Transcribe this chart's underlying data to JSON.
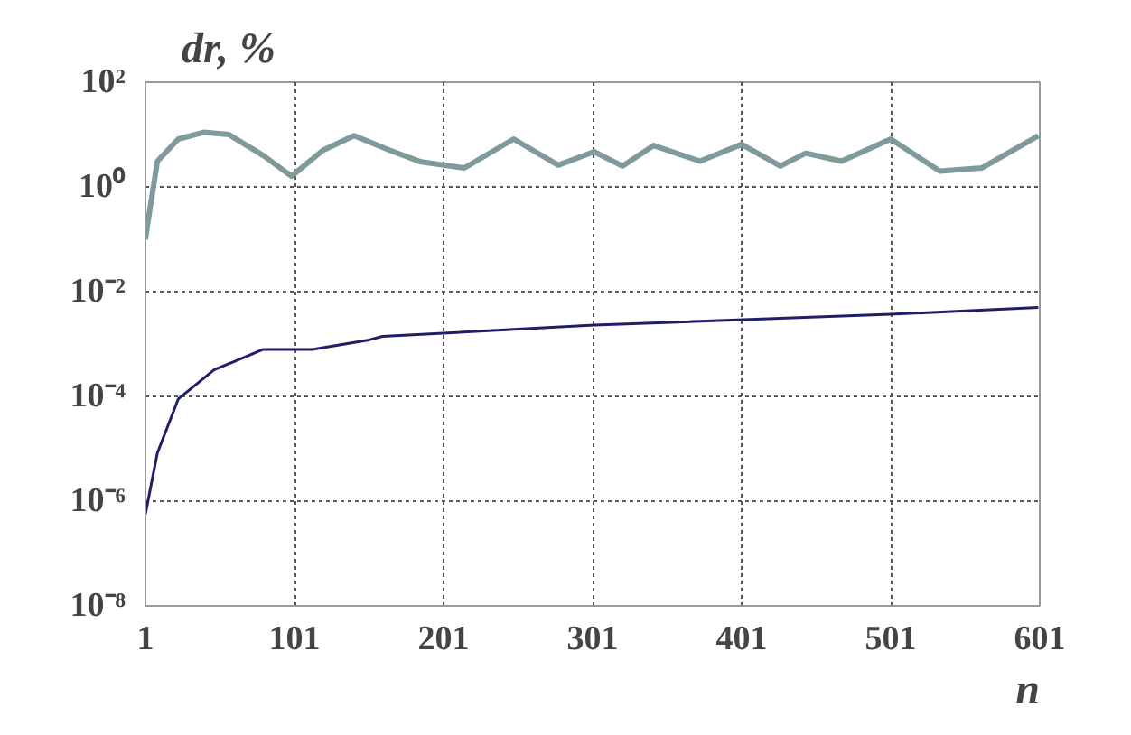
{
  "chart_data": {
    "type": "line",
    "xlabel": "n",
    "ylabel": "dr, %",
    "log": "y",
    "grid": true,
    "line_style": "solid",
    "xlim": [
      1,
      601
    ],
    "xticks": [
      1,
      101,
      201,
      301,
      401,
      501,
      601
    ],
    "ylim": [
      1e-08,
      100
    ],
    "yticks": [
      {
        "value": 1e-08,
        "label": "10⁻⁸"
      },
      {
        "value": 1e-06,
        "label": "10⁻⁶"
      },
      {
        "value": 0.0001,
        "label": "10⁻⁴"
      },
      {
        "value": 0.01,
        "label": "10⁻²"
      },
      {
        "value": 1,
        "label": "10⁰"
      },
      {
        "value": 100,
        "label": "10²"
      }
    ],
    "series": [
      {
        "color": "#7f9a9a",
        "x": [
          1,
          2,
          9,
          23,
          40,
          57,
          80,
          99,
          120,
          141,
          165,
          186,
          215,
          248,
          278,
          302,
          321,
          342,
          373,
          401,
          427,
          444,
          468,
          501,
          534,
          562,
          600
        ],
        "values": [
          0.1,
          0.16,
          3.1,
          8.2,
          11,
          10,
          4,
          1.6,
          5,
          9.5,
          5,
          3,
          2.3,
          8.2,
          2.6,
          4.7,
          2.5,
          6.2,
          3.1,
          6.5,
          2.5,
          4.4,
          3.1,
          8.2,
          2.0,
          2.3,
          9.5
        ]
      },
      {
        "color": "#1f1f66",
        "x": [
          1,
          9,
          23,
          47,
          80,
          113,
          151,
          160,
          302,
          501,
          600
        ],
        "values": [
          5.7e-07,
          8.3e-06,
          8.9e-05,
          0.00032,
          0.00079,
          0.00079,
          0.0012,
          0.0014,
          0.0023,
          0.0037,
          0.005
        ]
      }
    ]
  }
}
